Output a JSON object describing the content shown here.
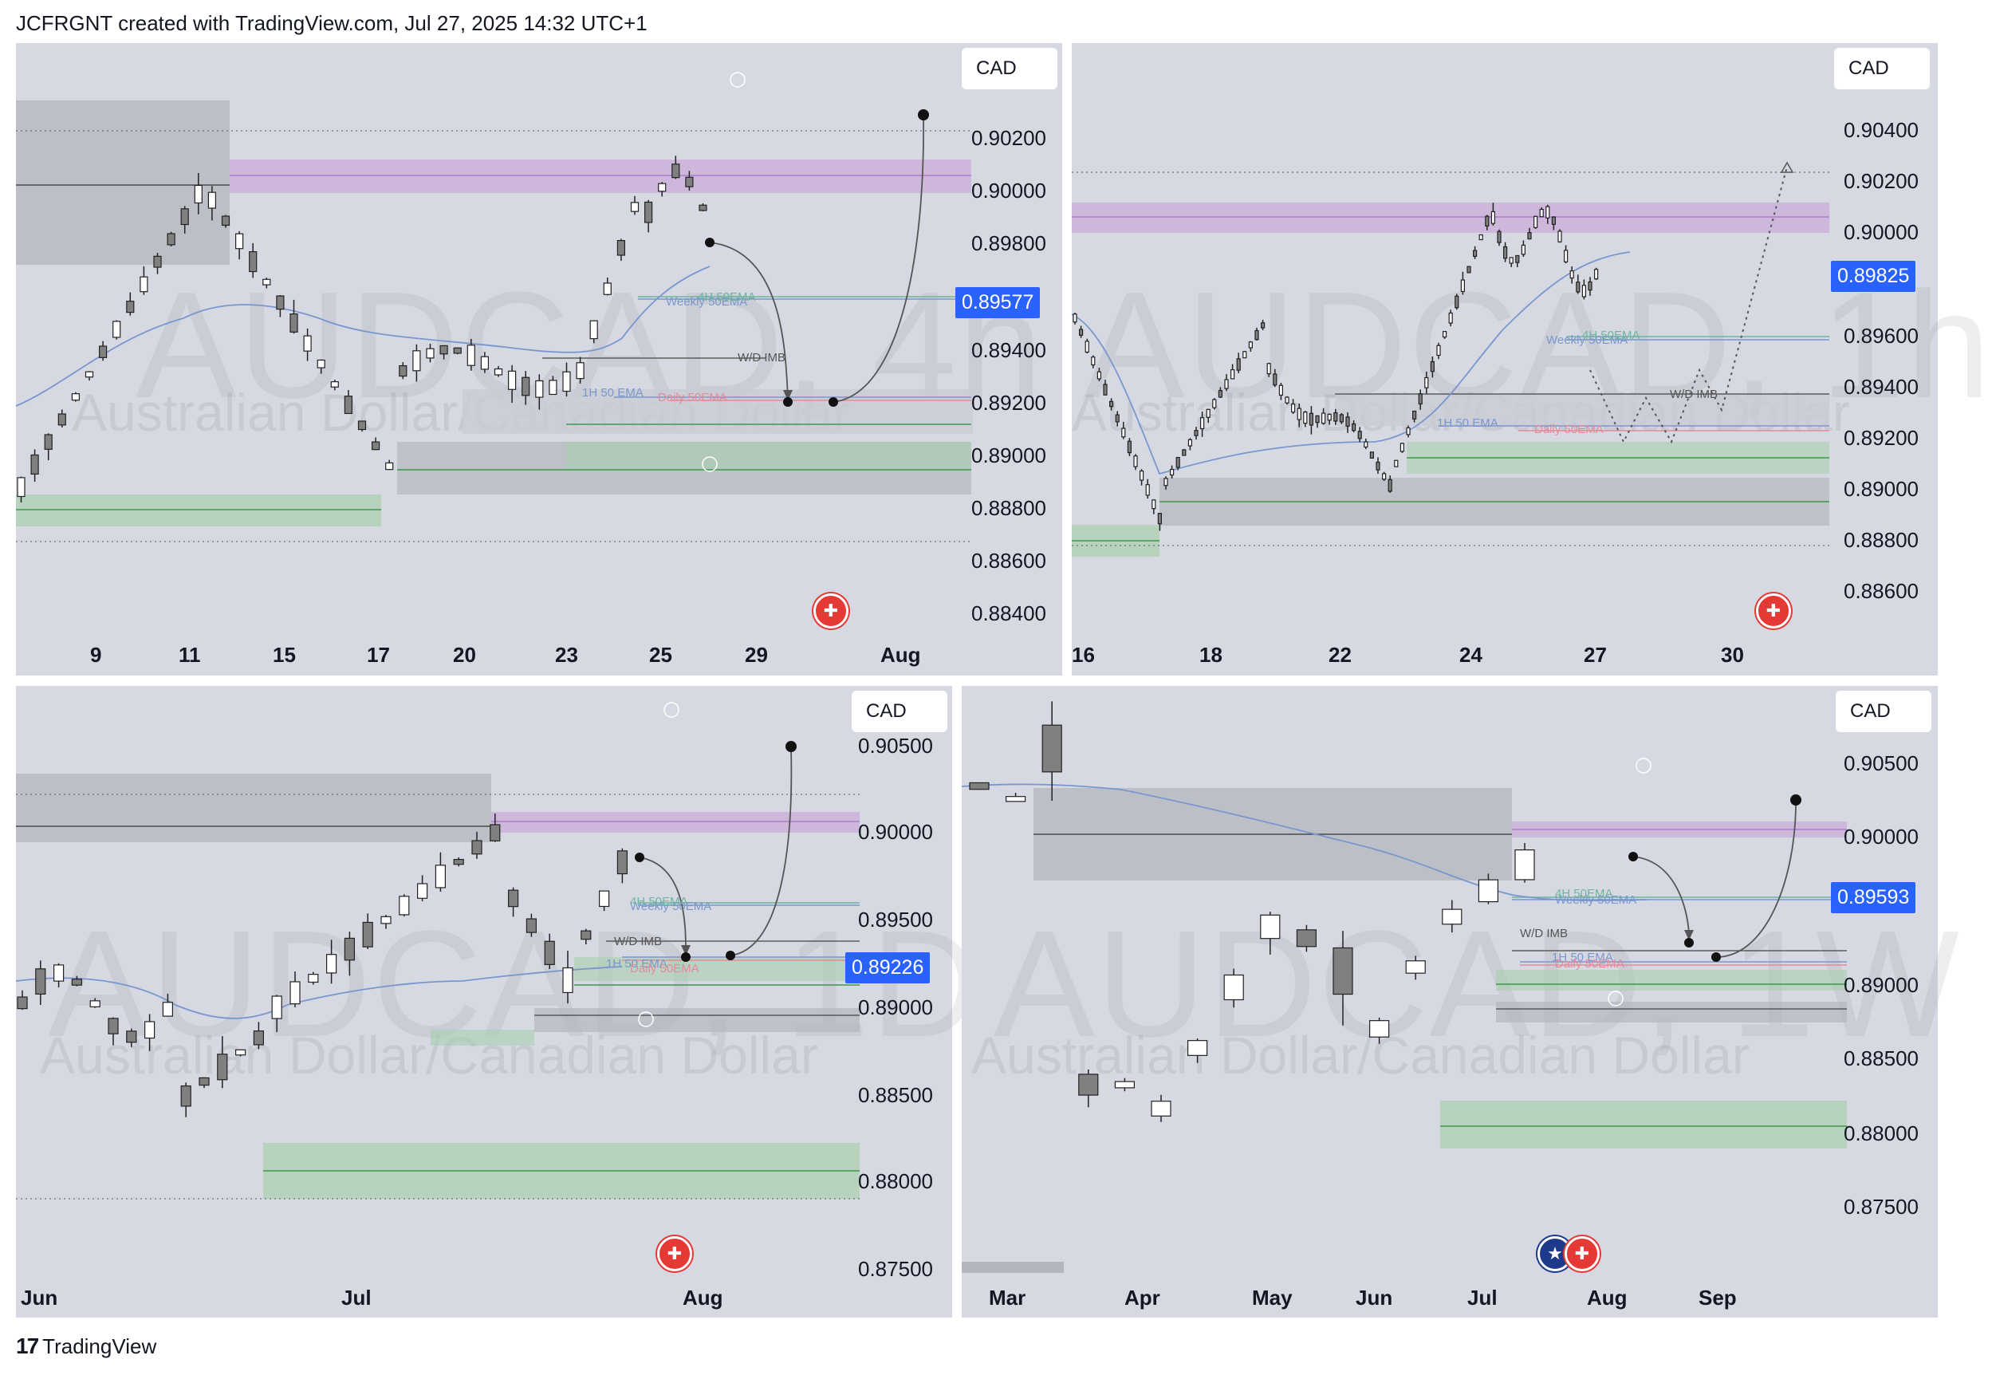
{
  "header": {
    "text": "JCFRGNT created with TradingView.com, Jul 27, 2025 14:32 UTC+1"
  },
  "footer": {
    "brand": "TradingView",
    "logo_icon": "tradingview-logo-icon"
  },
  "colors": {
    "accent": "#2962ff",
    "supply_zone": "#c9a9d9",
    "demand_zone": "#a9cfae",
    "grey_zone": "#b4b6bd",
    "candle_up": "#ffffff",
    "candle_down": "#808080",
    "ema": "#7b96cf"
  },
  "panels": [
    {
      "id": "tl",
      "symbol_watermark": "AUDCAD, 4h",
      "description_watermark": "Australian Dollar/Canadian Dollar",
      "currency": "CAD",
      "price_levels": [
        "0.90200",
        "0.90000",
        "0.89800",
        "0.89400",
        "0.89200",
        "0.89000",
        "0.88800",
        "0.88600",
        "0.88400"
      ],
      "current_price": "0.89577",
      "x_labels": [
        "9",
        "11",
        "15",
        "17",
        "20",
        "23",
        "25",
        "29",
        "Aug"
      ],
      "labels": {
        "wd_imb": "W/D IMB",
        "ema_1h": "1H 50 EMA",
        "ema_daily": "Daily 50EMA",
        "ema_weekly": "Weekly 50EMA",
        "ema_4h": "4H 50EMA"
      },
      "flag_icon": "canada-flag-icon"
    },
    {
      "id": "tr",
      "symbol_watermark": "AUDCAD, 1h",
      "description_watermark": "Australian Dollar/Canadian Dollar",
      "currency": "CAD",
      "price_levels": [
        "0.90400",
        "0.90200",
        "0.90000",
        "0.89600",
        "0.89400",
        "0.89200",
        "0.89000",
        "0.88800",
        "0.88600"
      ],
      "current_price": "0.89825",
      "x_labels": [
        "16",
        "18",
        "22",
        "24",
        "27",
        "30"
      ],
      "labels": {
        "wd_imb": "W/D IMB",
        "ema_1h": "1H 50 EMA",
        "ema_daily": "Daily 50EMA",
        "ema_weekly": "Weekly 50EMA",
        "ema_4h": "4H 50EMA"
      },
      "flag_icon": "canada-flag-icon"
    },
    {
      "id": "bl",
      "symbol_watermark": "AUDCAD, 1D",
      "description_watermark": "Australian Dollar/Canadian Dollar",
      "currency": "CAD",
      "price_levels": [
        "0.90500",
        "0.90000",
        "0.89500",
        "0.89000",
        "0.88500",
        "0.88000",
        "0.87500"
      ],
      "current_price": "0.89226",
      "x_labels": [
        "Jun",
        "Jul",
        "Aug"
      ],
      "labels": {
        "wd_imb": "W/D IMB",
        "ema_1h": "1H 50 EMA",
        "ema_daily": "Daily 50EMA",
        "ema_weekly": "Weekly 50EMA",
        "ema_4h": "4H 50EMA"
      },
      "flag_icon": "canada-flag-icon"
    },
    {
      "id": "br",
      "symbol_watermark": "AUDCAD, 1W",
      "description_watermark": "Australian Dollar/Canadian Dollar",
      "currency": "CAD",
      "price_levels": [
        "0.90500",
        "0.90000",
        "0.89500",
        "0.89000",
        "0.88500",
        "0.88000",
        "0.87500"
      ],
      "current_price": "0.89593",
      "x_labels": [
        "Mar",
        "Apr",
        "May",
        "Jun",
        "Jul",
        "Aug",
        "Sep"
      ],
      "labels": {
        "wd_imb": "W/D IMB",
        "ema_1h": "1H 50 EMA",
        "ema_daily": "Daily 50EMA",
        "ema_weekly": "Weekly 50EMA",
        "ema_4h": "4H 50EMA"
      },
      "flag_icon": "australia-canada-flags-icon"
    }
  ]
}
